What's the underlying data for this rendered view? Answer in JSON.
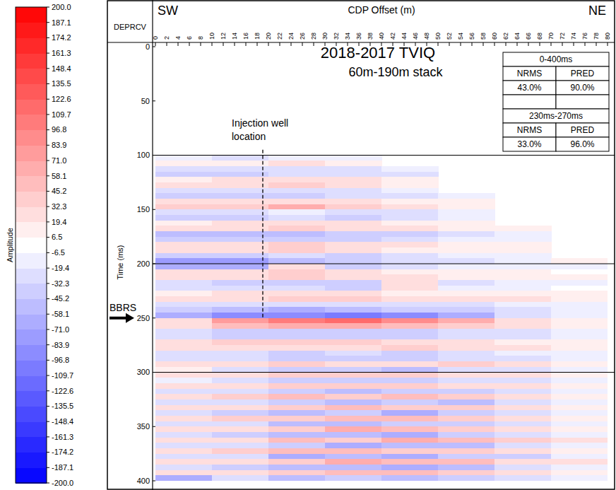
{
  "chart_data": {
    "type": "heatmap",
    "title": "2018-2017 TVIQ",
    "subtitle": "60m-190m stack",
    "header": "DEPRCV",
    "x_label": "CDP Offset (m)",
    "y_label": "Time (ms)",
    "x_left_label": "SW",
    "x_right_label": "NE",
    "xlim": [
      0,
      80
    ],
    "xticks": [
      0,
      2,
      4,
      6,
      8,
      10,
      12,
      14,
      16,
      18,
      20,
      22,
      24,
      26,
      28,
      30,
      32,
      34,
      36,
      38,
      40,
      42,
      44,
      46,
      48,
      50,
      52,
      54,
      56,
      58,
      60,
      62,
      64,
      66,
      68,
      70,
      72,
      74,
      76,
      78,
      80
    ],
    "ylim": [
      0,
      400
    ],
    "yticks": [
      0,
      50,
      100,
      150,
      200,
      250,
      300,
      350,
      400
    ],
    "grid": false,
    "reference_lines": [
      100,
      200,
      300
    ],
    "x": [
      5,
      15,
      25,
      35,
      45,
      55,
      65,
      75
    ],
    "y": [
      102.5,
      107.5,
      112.5,
      117.5,
      122.5,
      127.5,
      132.5,
      137.5,
      142.5,
      147.5,
      152.5,
      157.5,
      162.5,
      167.5,
      172.5,
      177.5,
      182.5,
      187.5,
      192.5,
      197.5,
      202.5,
      207.5,
      212.5,
      217.5,
      222.5,
      227.5,
      232.5,
      237.5,
      242.5,
      247.5,
      252.5,
      257.5,
      262.5,
      267.5,
      272.5,
      277.5,
      282.5,
      287.5,
      292.5,
      297.5,
      302.5,
      307.5,
      312.5,
      317.5,
      322.5,
      327.5,
      332.5,
      337.5,
      342.5,
      347.5,
      352.5,
      357.5,
      362.5,
      367.5,
      372.5,
      377.5,
      382.5,
      387.5,
      392.5,
      397.5
    ],
    "cells": [
      [
        -15,
        -20,
        -10,
        -15,
        null,
        null,
        null,
        null
      ],
      [
        10,
        15,
        20,
        10,
        null,
        null,
        null,
        null
      ],
      [
        -25,
        -30,
        -20,
        -25,
        -15,
        null,
        null,
        null
      ],
      [
        -35,
        -40,
        -30,
        -25,
        -20,
        null,
        null,
        null
      ],
      [
        15,
        20,
        25,
        20,
        10,
        null,
        null,
        null
      ],
      [
        30,
        25,
        35,
        20,
        15,
        null,
        null,
        null
      ],
      [
        -20,
        -30,
        -25,
        -20,
        -15,
        null,
        null,
        null
      ],
      [
        -40,
        -45,
        -35,
        -30,
        -20,
        -10,
        null,
        null
      ],
      [
        20,
        25,
        30,
        20,
        15,
        10,
        null,
        null
      ],
      [
        35,
        45,
        60,
        40,
        25,
        15,
        null,
        null
      ],
      [
        -20,
        -25,
        -15,
        -25,
        -20,
        -10,
        null,
        null
      ],
      [
        -35,
        -40,
        -30,
        -35,
        -25,
        -15,
        null,
        null
      ],
      [
        15,
        20,
        30,
        25,
        15,
        10,
        null,
        null
      ],
      [
        25,
        30,
        35,
        30,
        20,
        15,
        10,
        null
      ],
      [
        -50,
        -55,
        -50,
        -45,
        -35,
        -20,
        -10,
        null
      ],
      [
        -40,
        -45,
        -40,
        -35,
        -30,
        -15,
        -10,
        null
      ],
      [
        25,
        30,
        35,
        25,
        20,
        15,
        10,
        null
      ],
      [
        30,
        25,
        40,
        20,
        15,
        10,
        15,
        null
      ],
      [
        -40,
        -45,
        -30,
        -35,
        -25,
        -15,
        -10,
        null
      ],
      [
        -75,
        -80,
        -50,
        -45,
        -30,
        -20,
        -10,
        10
      ],
      [
        -60,
        -65,
        30,
        -40,
        -20,
        -10,
        -15,
        -10
      ],
      [
        25,
        30,
        45,
        20,
        15,
        10,
        10,
        5
      ],
      [
        30,
        20,
        40,
        25,
        30,
        15,
        10,
        10
      ],
      [
        -30,
        -35,
        -40,
        -45,
        30,
        -20,
        -15,
        -10
      ],
      [
        -20,
        -25,
        -30,
        -35,
        20,
        -15,
        -10,
        -5
      ],
      [
        15,
        20,
        25,
        20,
        15,
        10,
        15,
        10
      ],
      [
        25,
        30,
        35,
        40,
        30,
        25,
        20,
        10
      ],
      [
        -20,
        -25,
        -30,
        -30,
        -25,
        -20,
        -15,
        -10
      ],
      [
        -35,
        -50,
        -60,
        -55,
        -45,
        -35,
        -20,
        -10
      ],
      [
        -60,
        -90,
        -95,
        -100,
        -90,
        -60,
        -25,
        -15
      ],
      [
        30,
        80,
        100,
        110,
        95,
        60,
        25,
        15
      ],
      [
        20,
        50,
        60,
        70,
        55,
        40,
        20,
        10
      ],
      [
        -25,
        -35,
        -40,
        -45,
        -40,
        -30,
        -20,
        -15
      ],
      [
        -30,
        -40,
        -35,
        -40,
        -35,
        -30,
        -25,
        -15
      ],
      [
        30,
        35,
        40,
        35,
        30,
        25,
        15,
        10
      ],
      [
        20,
        25,
        30,
        25,
        40,
        30,
        20,
        10
      ],
      [
        -25,
        -30,
        -35,
        -30,
        -35,
        -25,
        -15,
        -10
      ],
      [
        -20,
        -25,
        -40,
        -45,
        -40,
        -30,
        -20,
        -10
      ],
      [
        25,
        30,
        35,
        30,
        25,
        40,
        20,
        10
      ],
      [
        15,
        -30,
        -45,
        -40,
        -50,
        -30,
        -20,
        -10
      ],
      [
        20,
        25,
        40,
        35,
        45,
        30,
        25,
        15
      ],
      [
        -15,
        -25,
        -35,
        -40,
        -45,
        -25,
        -20,
        -15
      ],
      [
        20,
        30,
        40,
        45,
        35,
        30,
        20,
        10
      ],
      [
        -25,
        -30,
        -45,
        -50,
        -40,
        -35,
        -20,
        -10
      ],
      [
        30,
        35,
        50,
        40,
        55,
        40,
        25,
        15
      ],
      [
        -20,
        -30,
        -40,
        -55,
        -45,
        -50,
        -25,
        -10
      ],
      [
        25,
        30,
        45,
        50,
        40,
        45,
        30,
        15
      ],
      [
        -30,
        -35,
        -50,
        -45,
        -60,
        -40,
        -25,
        -15
      ],
      [
        20,
        35,
        40,
        55,
        50,
        35,
        20,
        10
      ],
      [
        -25,
        -30,
        -55,
        -50,
        -45,
        -40,
        -30,
        -15
      ],
      [
        30,
        25,
        45,
        60,
        50,
        40,
        25,
        15
      ],
      [
        -20,
        -35,
        -50,
        -55,
        -65,
        -45,
        -30,
        -10
      ],
      [
        25,
        30,
        55,
        45,
        60,
        50,
        35,
        20
      ],
      [
        -30,
        -25,
        -45,
        -60,
        -50,
        -55,
        -30,
        -15
      ],
      [
        20,
        35,
        50,
        55,
        45,
        40,
        25,
        10
      ],
      [
        -25,
        -30,
        -60,
        -50,
        -70,
        -45,
        -35,
        -15
      ],
      [
        30,
        25,
        45,
        65,
        55,
        50,
        30,
        20
      ],
      [
        -20,
        -35,
        -55,
        -50,
        -60,
        -55,
        -30,
        -15
      ],
      [
        25,
        30,
        40,
        55,
        50,
        45,
        25,
        10
      ],
      [
        -60,
        -25,
        -50,
        -45,
        -55,
        -40,
        -30,
        -10
      ]
    ],
    "colorbar": {
      "label": "Amplitude",
      "range": [
        -200,
        200
      ],
      "colors": [
        "#0000ff",
        "#ffffff",
        "#ff0000"
      ],
      "ticks": [
        {
          "value": 200,
          "label": "200.0"
        },
        187.1,
        174.2,
        161.3,
        148.4,
        135.5,
        122.6,
        109.7,
        96.8,
        83.9,
        {
          "value": 71,
          "label": "71.0"
        },
        58.1,
        45.2,
        32.3,
        19.4,
        6.5,
        -6.5,
        -19.4,
        -32.3,
        -45.2,
        -58.1,
        {
          "value": -71,
          "label": "-71.0"
        },
        -83.9,
        -96.8,
        -109.7,
        -122.6,
        -135.5,
        -148.4,
        -161.3,
        -174.2,
        -187.1,
        {
          "value": -200,
          "label": "-200.0"
        }
      ]
    },
    "annotations": [
      {
        "text": "Injection well location",
        "x": 19,
        "y": [
          95,
          250
        ]
      },
      {
        "text": "BBRS",
        "y": 250
      }
    ],
    "tables": [
      {
        "title": "0-400ms",
        "columns": [
          "NRMS",
          "PRED"
        ],
        "values": [
          43.0,
          90.0
        ],
        "value_labels": [
          "43.0%",
          "90.0%"
        ]
      },
      {
        "title": "230ms-270ms",
        "columns": [
          "NRMS",
          "PRED"
        ],
        "values": [
          33.0,
          96.0
        ],
        "value_labels": [
          "33.0%",
          "96.0%"
        ]
      }
    ]
  }
}
